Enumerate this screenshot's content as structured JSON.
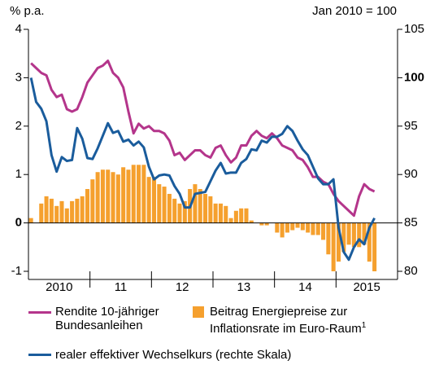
{
  "chart_data": {
    "type": "combo",
    "y_label": "% p.a.",
    "y2_label": "Jan 2010 = 100",
    "year_labels": [
      "2010",
      "11",
      "12",
      "13",
      "14",
      "2015"
    ],
    "categories": [
      null,
      null,
      null,
      null,
      null,
      null,
      null,
      null,
      null,
      null,
      null,
      null,
      null,
      null,
      null,
      null,
      null,
      null,
      null,
      null,
      null,
      null,
      null,
      null,
      null,
      null,
      null,
      null,
      null,
      null,
      null,
      null,
      null,
      null,
      null,
      null,
      null,
      null,
      null,
      null,
      null,
      null,
      null,
      null,
      null,
      null,
      null,
      null,
      null,
      null,
      null,
      null,
      null,
      null,
      null,
      null,
      null,
      null,
      null,
      null,
      null,
      null,
      null,
      null,
      null,
      null,
      null,
      null
    ],
    "ylim": [
      -1,
      4
    ],
    "yticks": [
      -1,
      0,
      1,
      2,
      3,
      4
    ],
    "y2lim": [
      80,
      105
    ],
    "y2ticks": [
      80,
      85,
      90,
      95,
      100,
      105
    ],
    "y2_emphasis": 100,
    "footnote_marker": "1",
    "series": [
      {
        "name": "Beitrag Energiepreise zur Inflationsrate im Euro-Raum",
        "type": "bar",
        "color": "#f5a02e",
        "values": [
          0.1,
          0.0,
          0.4,
          0.55,
          0.5,
          0.35,
          0.45,
          0.3,
          0.45,
          0.5,
          0.55,
          0.7,
          0.9,
          1.05,
          1.1,
          1.1,
          1.05,
          1.0,
          1.15,
          1.1,
          1.2,
          1.2,
          1.2,
          0.95,
          0.95,
          0.8,
          0.75,
          0.6,
          0.5,
          0.4,
          0.45,
          0.7,
          0.8,
          0.7,
          0.6,
          0.55,
          0.4,
          0.4,
          0.35,
          0.1,
          0.25,
          0.3,
          0.3,
          0.05,
          0.0,
          -0.05,
          -0.05,
          0.0,
          -0.2,
          -0.3,
          -0.2,
          -0.15,
          -0.1,
          -0.15,
          -0.2,
          -0.25,
          -0.25,
          -0.35,
          -0.65,
          -1.0,
          -0.8,
          -0.6,
          -0.45,
          -0.5,
          -0.5,
          -0.45,
          -0.8,
          -1.0
        ]
      },
      {
        "name": "Rendite 10-jähriger Bundesanleihen",
        "type": "line",
        "color": "#b4358b",
        "values": [
          3.3,
          3.2,
          3.1,
          3.05,
          2.75,
          2.6,
          2.65,
          2.35,
          2.3,
          2.35,
          2.6,
          2.9,
          3.05,
          3.2,
          3.25,
          3.35,
          3.1,
          3.0,
          2.8,
          2.3,
          1.85,
          2.05,
          1.95,
          2.0,
          1.9,
          1.9,
          1.85,
          1.7,
          1.4,
          1.45,
          1.3,
          1.4,
          1.5,
          1.5,
          1.4,
          1.35,
          1.55,
          1.6,
          1.4,
          1.25,
          1.35,
          1.6,
          1.6,
          1.8,
          1.9,
          1.8,
          1.75,
          1.85,
          1.75,
          1.6,
          1.55,
          1.5,
          1.35,
          1.3,
          1.15,
          0.95,
          0.95,
          0.85,
          0.8,
          0.6,
          0.45,
          0.35,
          0.25,
          0.15,
          0.55,
          0.8,
          0.7,
          0.65
        ]
      },
      {
        "name": "realer effektiver Wechselkurs (rechte Skala)",
        "type": "line",
        "axis": "y2",
        "color": "#1a5c9c",
        "values": [
          100,
          97.5,
          96.8,
          95.5,
          92,
          90.3,
          91.8,
          91.4,
          91.5,
          94.8,
          93.7,
          91.7,
          91.6,
          92.7,
          94.0,
          95.3,
          94.3,
          94.5,
          93.4,
          93.6,
          93.0,
          93.4,
          92.8,
          90.8,
          89.5,
          89.9,
          90.0,
          89.9,
          88.8,
          88.0,
          86.6,
          86.6,
          88.0,
          88.1,
          88.2,
          89.3,
          90.4,
          91.2,
          90.1,
          90.2,
          90.2,
          91.2,
          91.6,
          92.6,
          92.5,
          93.5,
          93.3,
          93.9,
          93.9,
          94.2,
          95.0,
          94.5,
          93.5,
          92.6,
          92.0,
          90.8,
          89.6,
          89.0,
          89.0,
          89.5,
          84.5,
          82.0,
          81.2,
          82.5,
          83.3,
          82.8,
          84.5,
          85.5
        ]
      }
    ]
  }
}
